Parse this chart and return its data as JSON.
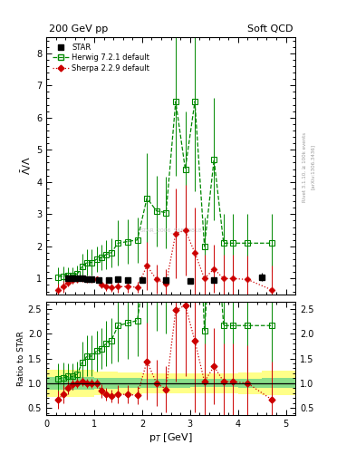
{
  "title_left": "200 GeV pp",
  "title_right": "Soft QCD",
  "ylabel_main": "$\\bar{\\Lambda}/\\Lambda$",
  "ylabel_ratio": "Ratio to STAR",
  "xlabel": "p$_{T}$ [GeV]",
  "right_label": "Rivet 3.1.10, ≥ 100k events",
  "right_label2": "[arXiv:1306.3436]",
  "watermark": "STAR_2006_S6860818",
  "star_x": [
    0.45,
    0.55,
    0.65,
    0.75,
    0.85,
    0.95,
    1.1,
    1.3,
    1.5,
    1.7,
    2.0,
    2.5,
    3.0,
    3.5,
    4.5
  ],
  "star_y": [
    1.0,
    1.0,
    1.0,
    1.0,
    0.97,
    0.98,
    0.95,
    0.95,
    0.97,
    0.95,
    0.95,
    0.95,
    0.93,
    0.95,
    1.05
  ],
  "star_yerr": [
    0.05,
    0.05,
    0.05,
    0.05,
    0.05,
    0.05,
    0.05,
    0.05,
    0.05,
    0.05,
    0.06,
    0.07,
    0.08,
    0.09,
    0.13
  ],
  "herwig_x": [
    0.25,
    0.35,
    0.45,
    0.55,
    0.65,
    0.75,
    0.85,
    0.95,
    1.05,
    1.15,
    1.25,
    1.35,
    1.5,
    1.7,
    1.9,
    2.1,
    2.3,
    2.5,
    2.7,
    2.9,
    3.1,
    3.3,
    3.5,
    3.7,
    3.9,
    4.2,
    4.7
  ],
  "herwig_y": [
    1.05,
    1.08,
    1.1,
    1.1,
    1.15,
    1.38,
    1.5,
    1.5,
    1.6,
    1.65,
    1.75,
    1.8,
    2.1,
    2.15,
    2.2,
    3.5,
    3.1,
    3.05,
    6.5,
    4.4,
    6.5,
    2.0,
    4.7,
    2.1,
    2.1,
    2.1,
    2.1
  ],
  "herwig_yerr": [
    0.3,
    0.3,
    0.25,
    0.25,
    0.25,
    0.4,
    0.4,
    0.4,
    0.4,
    0.4,
    0.45,
    0.45,
    0.7,
    0.7,
    0.7,
    1.4,
    1.1,
    1.1,
    2.3,
    1.8,
    2.8,
    0.9,
    1.9,
    0.9,
    0.9,
    0.9,
    0.9
  ],
  "sherpa_x": [
    0.25,
    0.35,
    0.45,
    0.55,
    0.65,
    0.75,
    0.85,
    0.95,
    1.05,
    1.15,
    1.25,
    1.35,
    1.5,
    1.7,
    1.9,
    2.1,
    2.3,
    2.5,
    2.7,
    2.9,
    3.1,
    3.3,
    3.5,
    3.7,
    3.9,
    4.2,
    4.7
  ],
  "sherpa_y": [
    0.65,
    0.75,
    0.88,
    0.95,
    0.97,
    1.0,
    0.97,
    0.97,
    0.97,
    0.82,
    0.75,
    0.72,
    0.75,
    0.75,
    0.73,
    1.4,
    0.97,
    0.85,
    2.4,
    2.5,
    1.8,
    1.0,
    1.3,
    1.0,
    1.0,
    0.97,
    0.65
  ],
  "sherpa_yerr": [
    0.18,
    0.18,
    0.13,
    0.1,
    0.09,
    0.09,
    0.09,
    0.09,
    0.09,
    0.13,
    0.13,
    0.13,
    0.18,
    0.18,
    0.18,
    0.75,
    0.45,
    0.45,
    1.4,
    1.4,
    1.4,
    0.75,
    0.75,
    0.75,
    0.75,
    0.75,
    0.75
  ],
  "xlim": [
    0.0,
    5.2
  ],
  "ylim_main": [
    0.5,
    8.5
  ],
  "ylim_ratio": [
    0.35,
    2.65
  ],
  "yticks_main": [
    1,
    2,
    3,
    4,
    5,
    6,
    7,
    8
  ],
  "yticks_ratio": [
    0.5,
    1.0,
    1.5,
    2.0,
    2.5
  ],
  "xticks": [
    0,
    1,
    2,
    3,
    4,
    5
  ],
  "star_color": "#000000",
  "herwig_color": "#008800",
  "sherpa_color": "#cc0000",
  "band_x_edges": [
    0.0,
    0.5,
    1.0,
    1.5,
    2.0,
    2.5,
    3.0,
    3.5,
    4.0,
    4.5,
    5.2
  ],
  "band_yellow_lo": [
    0.72,
    0.72,
    0.76,
    0.78,
    0.8,
    0.8,
    0.8,
    0.8,
    0.78,
    0.75,
    0.72
  ],
  "band_yellow_hi": [
    1.28,
    1.28,
    1.24,
    1.22,
    1.2,
    1.2,
    1.2,
    1.2,
    1.22,
    1.25,
    1.28
  ],
  "band_green_lo": [
    0.87,
    0.87,
    0.89,
    0.9,
    0.91,
    0.91,
    0.92,
    0.92,
    0.91,
    0.9,
    0.87
  ],
  "band_green_hi": [
    1.13,
    1.13,
    1.11,
    1.1,
    1.09,
    1.09,
    1.08,
    1.08,
    1.09,
    1.1,
    1.13
  ]
}
